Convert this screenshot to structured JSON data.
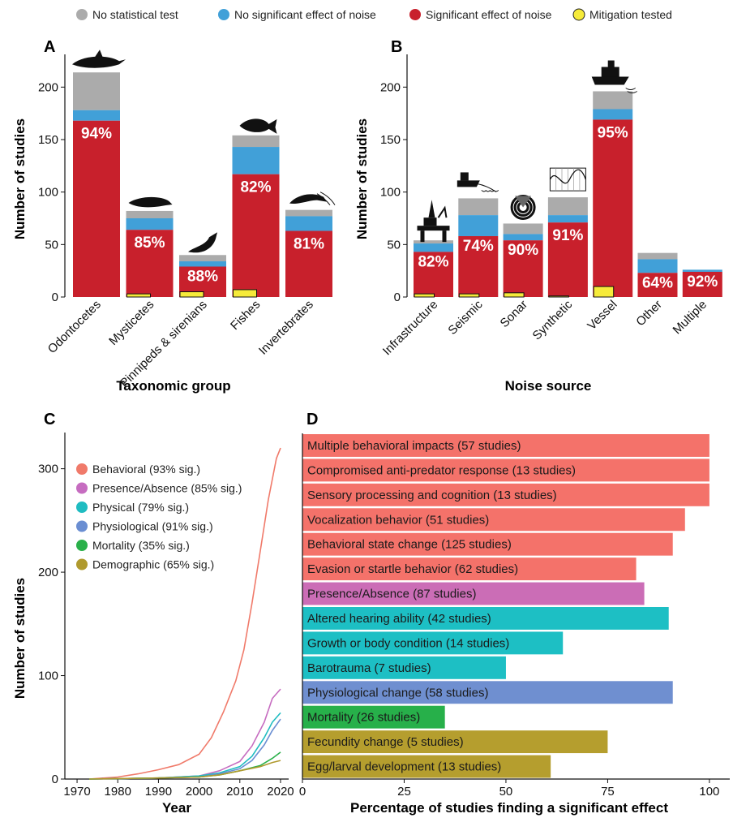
{
  "legend": {
    "items": [
      {
        "label": "No statistical test",
        "color": "#ababab"
      },
      {
        "label": "No significant effect of noise",
        "color": "#41a0d8"
      },
      {
        "label": "Significant effect of noise",
        "color": "#c8202c"
      },
      {
        "label": "Mitigation tested",
        "color": "#f6eb3a"
      }
    ]
  },
  "panels": {
    "a": "A",
    "b": "B",
    "c": "C",
    "d": "D"
  },
  "chart_data": [
    {
      "type": "bar",
      "panel": "A",
      "stacked": true,
      "categories": [
        "Odontocetes",
        "Mysticetes",
        "Pinnipeds & sirenians",
        "Fishes",
        "Invertebrates"
      ],
      "series": [
        {
          "name": "Significant effect of noise",
          "values": [
            168,
            64,
            29,
            117,
            63
          ]
        },
        {
          "name": "No significant effect of noise",
          "values": [
            10,
            11,
            5,
            26,
            14
          ]
        },
        {
          "name": "No statistical test",
          "values": [
            36,
            7,
            6,
            11,
            6
          ]
        },
        {
          "name": "Mitigation tested",
          "values": [
            0,
            3,
            5,
            7,
            0
          ]
        }
      ],
      "bar_labels": [
        "94%",
        "85%",
        "88%",
        "82%",
        "81%"
      ],
      "xlabel": "Taxonomic group",
      "ylabel": "Number of studies",
      "ylim": [
        0,
        225
      ],
      "yticks": [
        0,
        50,
        100,
        150,
        200
      ],
      "icons": [
        "dolphin-icon",
        "whale-icon",
        "seal-icon",
        "fish-icon",
        "shrimp-icon"
      ]
    },
    {
      "type": "bar",
      "panel": "B",
      "stacked": true,
      "categories": [
        "Infrastructure",
        "Seismic",
        "Sonar",
        "Synthetic",
        "Vessel",
        "Other",
        "Multiple"
      ],
      "series": [
        {
          "name": "Significant effect of noise",
          "values": [
            43,
            58,
            54,
            71,
            169,
            23,
            24
          ]
        },
        {
          "name": "No significant effect of noise",
          "values": [
            8,
            20,
            6,
            7,
            10,
            13,
            2
          ]
        },
        {
          "name": "No statistical test",
          "values": [
            3,
            16,
            10,
            17,
            17,
            6,
            0
          ]
        },
        {
          "name": "Mitigation tested",
          "values": [
            3,
            3,
            4,
            1,
            10,
            0,
            0
          ]
        }
      ],
      "bar_labels": [
        "82%",
        "74%",
        "90%",
        "91%",
        "95%",
        "64%",
        "92%"
      ],
      "xlabel": "Noise source",
      "ylabel": "Number of studies",
      "ylim": [
        0,
        225
      ],
      "yticks": [
        0,
        50,
        100,
        150,
        200
      ],
      "icons": [
        "oil-rig-icon",
        "seismic-ship-icon",
        "sonar-icon",
        "waveform-icon",
        "vessel-icon",
        "",
        ""
      ]
    },
    {
      "type": "line",
      "panel": "C",
      "cumulative": true,
      "xlabel": "Year",
      "ylabel": "Number of studies",
      "xlim": [
        1967,
        2022
      ],
      "ylim": [
        0,
        335
      ],
      "xticks": [
        1970,
        1980,
        1990,
        2000,
        2010,
        2020
      ],
      "yticks": [
        0,
        100,
        200,
        300
      ],
      "series": [
        {
          "name": "Behavioral (93% sig.)",
          "color": "#f07a6a",
          "x": [
            1973,
            1980,
            1985,
            1990,
            1995,
            2000,
            2003,
            2006,
            2009,
            2011,
            2013,
            2015,
            2017,
            2019,
            2020
          ],
          "y": [
            0,
            2,
            5,
            9,
            14,
            24,
            40,
            65,
            95,
            125,
            170,
            220,
            270,
            310,
            320
          ]
        },
        {
          "name": "Presence/Absence (85% sig.)",
          "color": "#c66cc0",
          "x": [
            1973,
            1990,
            2000,
            2005,
            2010,
            2013,
            2016,
            2018,
            2020
          ],
          "y": [
            0,
            1,
            3,
            8,
            17,
            32,
            55,
            78,
            87
          ]
        },
        {
          "name": "Physical (79% sig.)",
          "color": "#1fbcc1",
          "x": [
            1973,
            1990,
            2000,
            2005,
            2010,
            2013,
            2016,
            2018,
            2020
          ],
          "y": [
            0,
            1,
            3,
            6,
            12,
            22,
            40,
            55,
            64
          ]
        },
        {
          "name": "Physiological (91% sig.)",
          "color": "#6a8ed2",
          "x": [
            1973,
            1990,
            2000,
            2005,
            2010,
            2013,
            2016,
            2018,
            2020
          ],
          "y": [
            0,
            1,
            2,
            5,
            10,
            18,
            33,
            47,
            58
          ]
        },
        {
          "name": "Mortality (35% sig.)",
          "color": "#2ab04a",
          "x": [
            1973,
            1990,
            2000,
            2005,
            2010,
            2015,
            2018,
            2020
          ],
          "y": [
            0,
            1,
            2,
            4,
            8,
            13,
            20,
            26
          ]
        },
        {
          "name": "Demographic (65% sig.)",
          "color": "#b09a2e",
          "x": [
            1973,
            1990,
            2000,
            2005,
            2010,
            2015,
            2018,
            2020
          ],
          "y": [
            0,
            1,
            2,
            4,
            8,
            12,
            16,
            18
          ]
        }
      ]
    },
    {
      "type": "bar",
      "panel": "D",
      "orientation": "horizontal",
      "xlabel": "Percentage of studies finding a significant effect",
      "xlim": [
        0,
        105
      ],
      "xticks": [
        0,
        25,
        50,
        75,
        100
      ],
      "categories": [
        "Multiple behavioral impacts (57 studies)",
        "Compromised anti-predator response (13 studies)",
        "Sensory processing and cognition (13 studies)",
        "Vocalization behavior (51 studies)",
        "Behavioral state change (125 studies)",
        "Evasion or startle behavior (62 studies)",
        "Presence/Absence (87 studies)",
        "Altered hearing ability (42 studies)",
        "Growth or body condition (14 studies)",
        "Barotrauma (7 studies)",
        "Physiological change (58 studies)",
        "Mortality (26 studies)",
        "Fecundity change (5 studies)",
        "Egg/larval development (13 studies)"
      ],
      "values": [
        100,
        100,
        100,
        94,
        91,
        82,
        84,
        90,
        64,
        50,
        91,
        35,
        75,
        61
      ],
      "colors": [
        "#f4726a",
        "#f4726a",
        "#f4726a",
        "#f4726a",
        "#f4726a",
        "#f4726a",
        "#cb6db6",
        "#1dbfc4",
        "#1dbfc4",
        "#1dbfc4",
        "#6f8fd0",
        "#27b04a",
        "#b59e2e",
        "#b59e2e"
      ]
    }
  ]
}
